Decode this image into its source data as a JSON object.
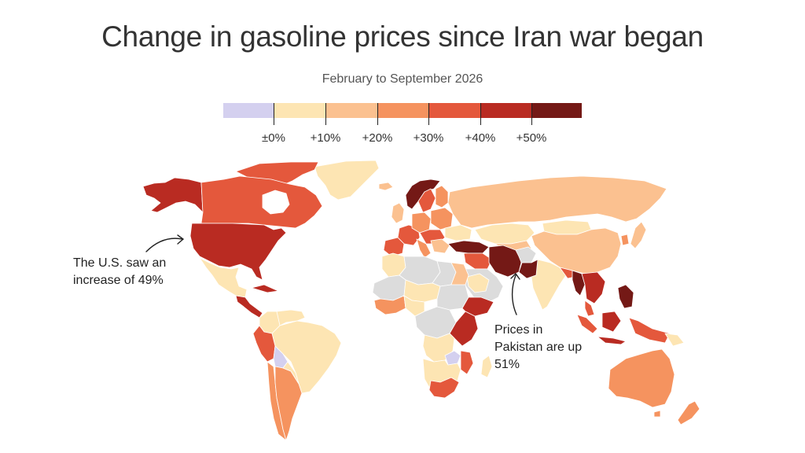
{
  "title": "Change in gasoline prices since Iran war began",
  "subtitle": "February to September 2026",
  "legend": {
    "colors": [
      "#d4d0ef",
      "#fde5b3",
      "#fbc190",
      "#f5935f",
      "#e4583c",
      "#b92b22",
      "#741916"
    ],
    "ticks": [
      "±0%",
      "+10%",
      "+20%",
      "+30%",
      "+40%",
      "+50%"
    ]
  },
  "colors": {
    "na": "#dcdcdc",
    "c0": "#d4d0ef",
    "c1": "#fde5b3",
    "c2": "#fbc190",
    "c3": "#f5935f",
    "c4": "#e4583c",
    "c5": "#b92b22",
    "c6": "#741916"
  },
  "annotations": {
    "us_line1": "The U.S. saw an",
    "us_line2": "increase of 49%",
    "pk_line1": "Prices in",
    "pk_line2": "Pakistan are up",
    "pk_line3": "51%"
  }
}
